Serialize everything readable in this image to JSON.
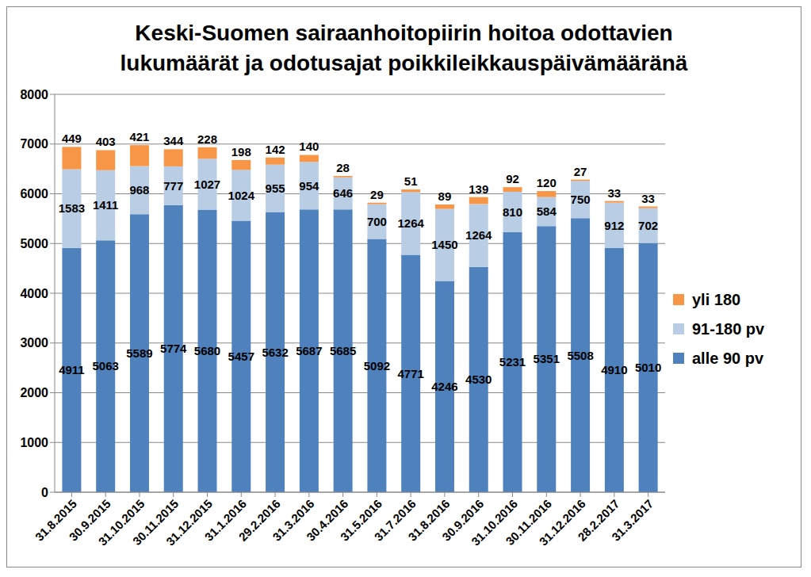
{
  "chart_data": {
    "type": "bar",
    "title": "Keski-Suomen sairaanhoitopiirin hoitoa odottavien lukumäärät ja odotusajat poikkileikkauspäivämääränä",
    "stacked": true,
    "data_labels": true,
    "grid": true,
    "legend": "right",
    "categories": [
      "31.8.2015",
      "30.9.2015",
      "31.10.2015",
      "30.11.2015",
      "31.12.2015",
      "31.1.2016",
      "29.2.2016",
      "31.3.2016",
      "30.4.2016",
      "31.5.2016",
      "31.7.2016",
      "31.8.2016",
      "30.9.2016",
      "31.10.2016",
      "30.11.2016",
      "31.12.2016",
      "28.2.2017",
      "31.3.2017"
    ],
    "series": [
      {
        "name": "alle 90 pv",
        "color": "#4f81bd",
        "values": [
          4911,
          5063,
          5589,
          5774,
          5680,
          5457,
          5632,
          5687,
          5685,
          5092,
          4771,
          4246,
          4530,
          5231,
          5351,
          5508,
          4910,
          5010
        ]
      },
      {
        "name": "91-180 pv",
        "color": "#b9cde5",
        "values": [
          1583,
          1411,
          968,
          777,
          1027,
          1024,
          955,
          954,
          646,
          700,
          1264,
          1450,
          1264,
          810,
          584,
          750,
          912,
          702
        ]
      },
      {
        "name": "yli 180",
        "color": "#f79646",
        "values": [
          449,
          403,
          421,
          344,
          228,
          198,
          142,
          140,
          28,
          29,
          51,
          89,
          139,
          92,
          120,
          27,
          33,
          33
        ]
      }
    ],
    "ylim": [
      0,
      8000
    ],
    "yticks": [
      0,
      1000,
      2000,
      3000,
      4000,
      5000,
      6000,
      7000,
      8000
    ]
  }
}
